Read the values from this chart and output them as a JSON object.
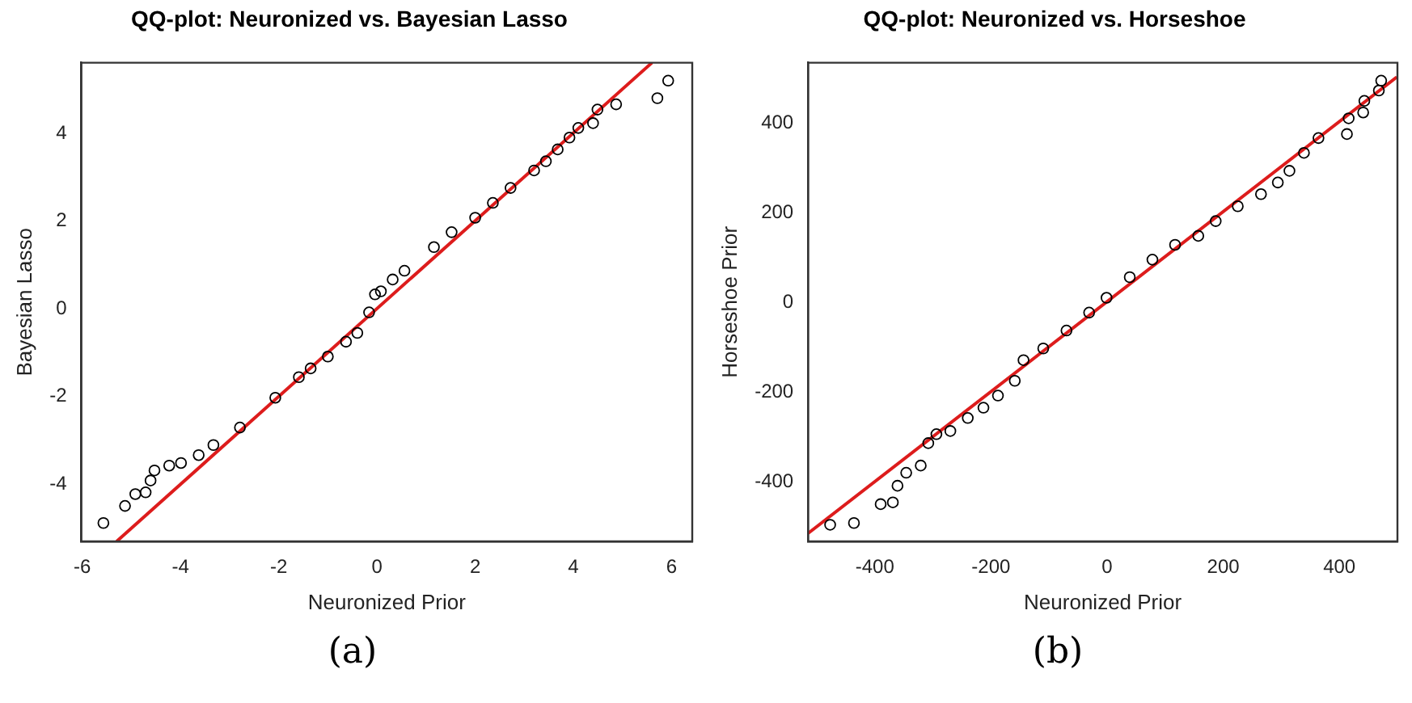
{
  "chart_data": [
    {
      "type": "scatter",
      "title": "QQ-plot: Neuronized vs. Bayesian Lasso",
      "xlabel": "Neuronized Prior",
      "ylabel": "Bayesian Lasso",
      "annotations": [
        "(a)"
      ],
      "xlim": [
        -6.02,
        6.42
      ],
      "ylim": [
        -5.31,
        5.62
      ],
      "xticks": [
        -6,
        -4,
        -2,
        0,
        2,
        4,
        6
      ],
      "yticks": [
        -4,
        -2,
        0,
        2,
        4
      ],
      "grid": false,
      "legend": false,
      "marker": "circle",
      "series": [
        {
          "type": "scatter",
          "color": "#000000",
          "x": [
            -5.57,
            -5.13,
            -4.92,
            -4.71,
            -4.61,
            -4.53,
            -4.23,
            -3.99,
            -3.63,
            -3.33,
            -2.79,
            -2.07,
            -1.59,
            -1.35,
            -1.0,
            -0.63,
            -0.4,
            -0.16,
            -0.04,
            0.08,
            0.32,
            0.56,
            1.16,
            1.52,
            2.0,
            2.36,
            2.72,
            3.2,
            3.44,
            3.68,
            3.92,
            4.1,
            4.4,
            4.49,
            4.87,
            5.71,
            5.93
          ],
          "values": [
            -4.89,
            -4.5,
            -4.23,
            -4.19,
            -3.92,
            -3.69,
            -3.58,
            -3.52,
            -3.34,
            -3.11,
            -2.71,
            -2.03,
            -1.56,
            -1.36,
            -1.09,
            -0.75,
            -0.55,
            -0.08,
            0.33,
            0.4,
            0.67,
            0.87,
            1.41,
            1.75,
            2.08,
            2.42,
            2.76,
            3.16,
            3.37,
            3.64,
            3.91,
            4.13,
            4.24,
            4.55,
            4.67,
            4.81,
            5.21
          ]
        },
        {
          "type": "line",
          "color": "#dd1c1c",
          "line_style": "solid",
          "marker": "none",
          "x": [
            -5.3,
            5.6
          ],
          "values": [
            -5.31,
            5.62
          ]
        }
      ]
    },
    {
      "type": "scatter",
      "title": "QQ-plot: Neuronized vs. Horseshoe",
      "xlabel": "Neuronized Prior",
      "ylabel": "Horseshoe Prior",
      "annotations": [
        "(b)"
      ],
      "xlim": [
        -515,
        500
      ],
      "ylim": [
        -532,
        535
      ],
      "xticks": [
        -400,
        -200,
        0,
        200,
        400
      ],
      "yticks": [
        -400,
        -200,
        0,
        200,
        400
      ],
      "grid": false,
      "legend": false,
      "marker": "circle",
      "series": [
        {
          "type": "scatter",
          "color": "#000000",
          "x": [
            -477,
            -436,
            -390,
            -369,
            -361,
            -346,
            -321,
            -308,
            -294,
            -270,
            -240,
            -213,
            -188,
            -159,
            -144,
            -110,
            -70,
            -31,
            -1,
            39,
            78,
            117,
            157,
            187,
            225,
            265,
            294,
            314,
            339,
            364,
            413,
            416,
            441,
            443,
            468,
            472
          ],
          "values": [
            -495,
            -491,
            -449,
            -445,
            -408,
            -379,
            -363,
            -313,
            -293,
            -286,
            -257,
            -234,
            -207,
            -174,
            -128,
            -102,
            -62,
            -22,
            11,
            57,
            96,
            129,
            149,
            182,
            215,
            242,
            268,
            294,
            334,
            367,
            376,
            411,
            424,
            450,
            473,
            495
          ]
        },
        {
          "type": "line",
          "color": "#dd1c1c",
          "line_style": "solid",
          "marker": "none",
          "x": [
            -515,
            499
          ],
          "values": [
            -514,
            503
          ]
        }
      ]
    }
  ]
}
